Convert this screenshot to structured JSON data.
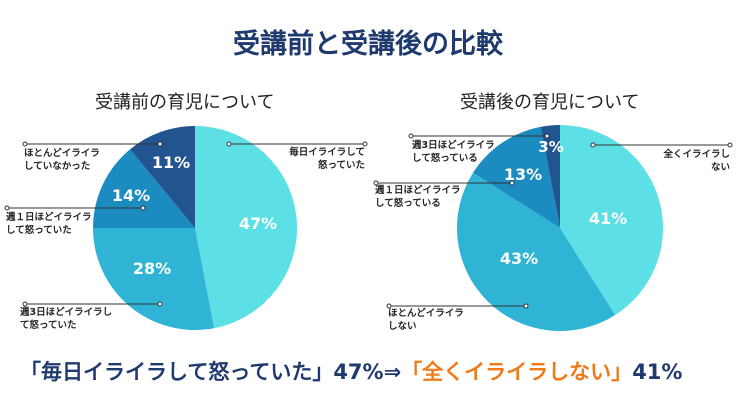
{
  "title": "受講前と受講後の比較",
  "chart_data": [
    {
      "type": "pie",
      "title": "受講前の育児について",
      "slices": [
        {
          "label": "毎日イライラして怒っていた",
          "value": 47,
          "display": "47%",
          "color": "#5ce0e6"
        },
        {
          "label": "週3日ほどイライラして怒っていた",
          "value": 28,
          "display": "28%",
          "color": "#2fb4d6"
        },
        {
          "label": "週１日ほどイライラして怒っていた",
          "value": 14,
          "display": "14%",
          "color": "#1b8bc0"
        },
        {
          "label": "ほとんどイライラしていなかった",
          "value": 11,
          "display": "11%",
          "color": "#22548f"
        }
      ]
    },
    {
      "type": "pie",
      "title": "受講後の育児について",
      "slices": [
        {
          "label": "全くイライラしない",
          "value": 41,
          "display": "41%",
          "color": "#5ce0e6"
        },
        {
          "label": "ほとんどイライラしない",
          "value": 43,
          "display": "43%",
          "color": "#2fb4d6"
        },
        {
          "label": "週１日ほどイライラして怒っている",
          "value": 13,
          "display": "13%",
          "color": "#1b8bc0"
        },
        {
          "label": "週3日ほどイライラして怒っている",
          "value": 3,
          "display": "3%",
          "color": "#22548f"
        }
      ]
    }
  ],
  "bottom": {
    "part1": "「毎日イライラして怒っていた」47%⇒",
    "part2": "「全くイライラしない」",
    "part3": "41%"
  }
}
